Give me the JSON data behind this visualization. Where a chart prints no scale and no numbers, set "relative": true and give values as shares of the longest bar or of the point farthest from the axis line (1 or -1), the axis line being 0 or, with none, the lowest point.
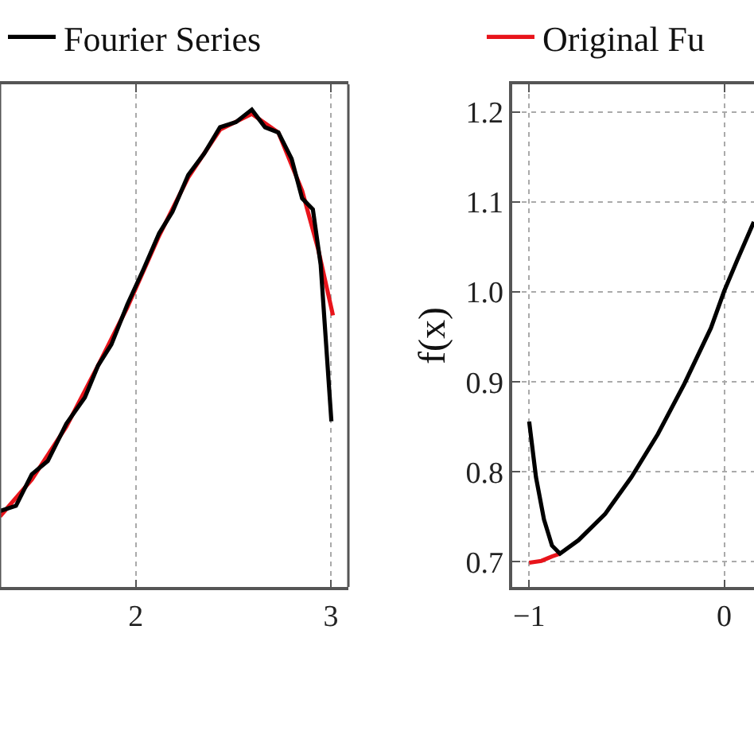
{
  "chart_data": [
    {
      "type": "line",
      "relative": true,
      "xlim": [
        1.304,
        3.09
      ],
      "xticks": [
        2,
        3
      ],
      "grid": "x",
      "legend": "top",
      "line_style": "solid",
      "marker": "none",
      "series": [
        {
          "color": "#e8141b",
          "x": [
            1.304,
            1.467,
            1.644,
            1.807,
            1.957,
            2.12,
            2.269,
            2.432,
            2.595,
            2.731,
            2.853,
            2.935,
            3.011
          ],
          "values": [
            0.148,
            0.225,
            0.336,
            0.464,
            0.586,
            0.736,
            0.858,
            0.958,
            0.991,
            0.952,
            0.83,
            0.708,
            0.569
          ]
        },
        {
          "name": "Fourier Series",
          "color": "#000000",
          "x": [
            1.304,
            1.386,
            1.467,
            1.549,
            1.644,
            1.739,
            1.807,
            1.875,
            1.957,
            2.038,
            2.12,
            2.188,
            2.269,
            2.351,
            2.432,
            2.514,
            2.595,
            2.663,
            2.731,
            2.799,
            2.853,
            2.908,
            2.948,
            2.976,
            3.003
          ],
          "values": [
            0.159,
            0.17,
            0.236,
            0.264,
            0.342,
            0.397,
            0.464,
            0.508,
            0.592,
            0.664,
            0.741,
            0.786,
            0.863,
            0.908,
            0.963,
            0.974,
            1.0,
            0.963,
            0.952,
            0.897,
            0.814,
            0.791,
            0.675,
            0.508,
            0.347
          ]
        }
      ]
    },
    {
      "type": "line",
      "ylabel": "f(x)",
      "xlim": [
        -1.087,
        0.153
      ],
      "ylim": [
        0.672,
        1.231
      ],
      "xticks": [
        {
          "value": -1,
          "label": "−1"
        },
        0
      ],
      "yticks": [
        0.7,
        0.8,
        0.9,
        {
          "value": 1.0,
          "label": "1.0"
        },
        1.1,
        1.2
      ],
      "grid": true,
      "legend": "top",
      "line_style": "solid",
      "marker": "none",
      "series": [
        {
          "name": "Original Fu",
          "color": "#e8141b",
          "x": [
            -1,
            -0.9375,
            -0.883,
            -0.842
          ],
          "values": [
            0.699,
            0.701,
            0.706,
            0.709
          ]
        },
        {
          "color": "#000000",
          "x": [
            -1,
            -0.965,
            -0.924,
            -0.883,
            -0.842,
            -0.747,
            -0.611,
            -0.476,
            -0.34,
            -0.204,
            -0.068,
            0,
            0.068,
            0.152
          ],
          "values": [
            0.856,
            0.794,
            0.747,
            0.718,
            0.709,
            0.724,
            0.753,
            0.794,
            0.842,
            0.898,
            0.96,
            1.001,
            1.036,
            1.078
          ]
        }
      ]
    }
  ]
}
